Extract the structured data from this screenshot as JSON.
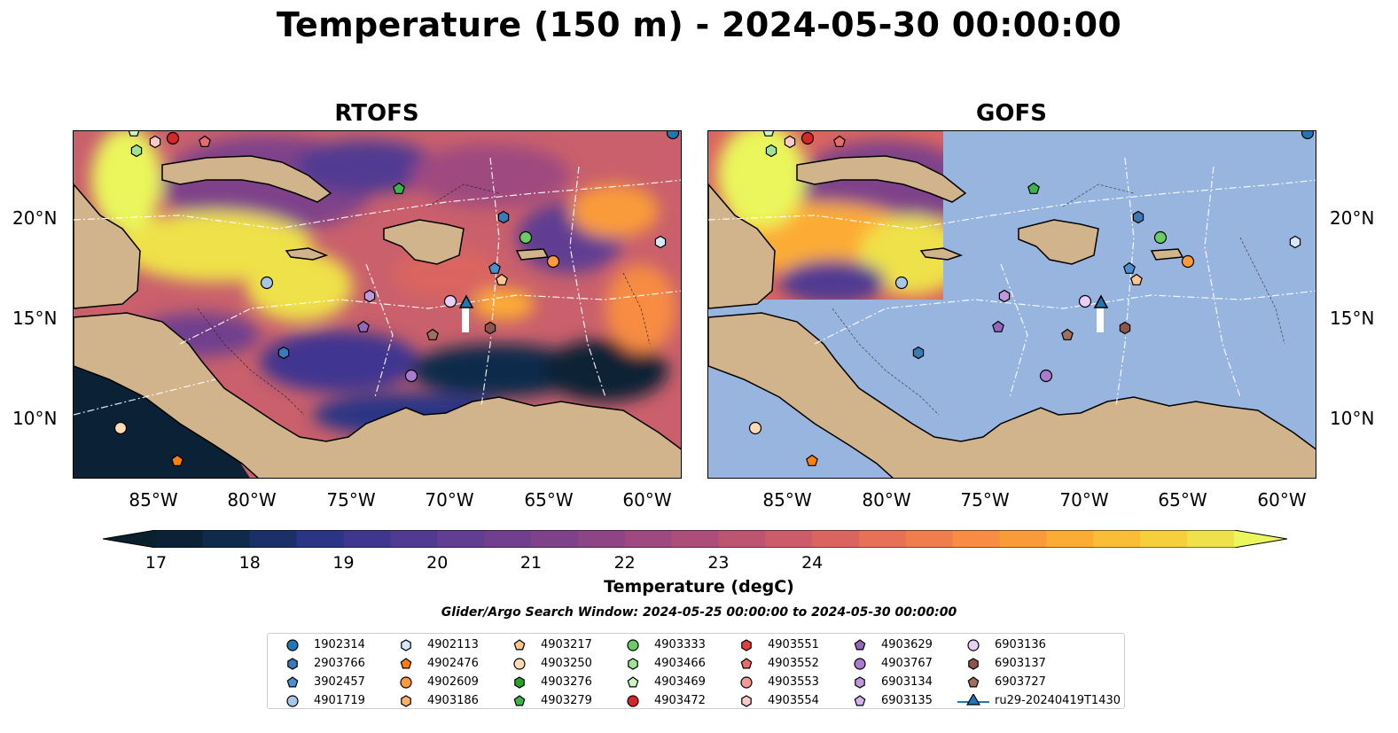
{
  "figure": {
    "title": "Temperature (150 m) - 2024-05-30 00:00:00",
    "search_window": "Glider/Argo Search Window: 2024-05-25 00:00:00 to 2024-05-30 00:00:00"
  },
  "panels": [
    {
      "title": "RTOFS"
    },
    {
      "title": "GOFS"
    }
  ],
  "axes": {
    "lat_ticks": [
      "10°N",
      "15°N",
      "20°N"
    ],
    "lon_ticks": [
      "85°W",
      "80°W",
      "75°W",
      "70°W",
      "65°W",
      "60°W"
    ]
  },
  "colorbar": {
    "label": "Temperature (degC)",
    "ticks": [
      "17",
      "18",
      "19",
      "20",
      "21",
      "22",
      "23",
      "24"
    ],
    "colors": [
      "#0b2236",
      "#102a4c",
      "#1b3068",
      "#2c3585",
      "#3f3690",
      "#513a92",
      "#613e92",
      "#703f8e",
      "#7f428a",
      "#8e4586",
      "#9e4980",
      "#ad4e7a",
      "#bd5572",
      "#cc5c69",
      "#da6560",
      "#e67157",
      "#f07e4d",
      "#f78c42",
      "#fa9b3a",
      "#fcac35",
      "#fbbd36",
      "#f6cf3c",
      "#efe14a"
    ],
    "over_color": "#eaf65b",
    "under_color": "#09202f"
  },
  "map_colors": {
    "land": "#d2b48c",
    "ocean": "#98b5e0"
  },
  "legend": {
    "entries": [
      {
        "label": "1902314",
        "marker": "circle",
        "color": "#1f77b4"
      },
      {
        "label": "2903766",
        "marker": "hexagon",
        "color": "#3a7ab8"
      },
      {
        "label": "3902457",
        "marker": "pentagon",
        "color": "#4a90d0"
      },
      {
        "label": "4901719",
        "marker": "circle",
        "color": "#a6c8e6"
      },
      {
        "label": "4902113",
        "marker": "hexagon",
        "color": "#d4e8f7"
      },
      {
        "label": "4902476",
        "marker": "pentagon",
        "color": "#ff7f0e"
      },
      {
        "label": "4902609",
        "marker": "circle",
        "color": "#ff9a3c"
      },
      {
        "label": "4903186",
        "marker": "hexagon",
        "color": "#ffb26b"
      },
      {
        "label": "4903217",
        "marker": "pentagon",
        "color": "#ffc58f"
      },
      {
        "label": "4903250",
        "marker": "circle",
        "color": "#ffdbb4"
      },
      {
        "label": "4903276",
        "marker": "hexagon",
        "color": "#2ca02c"
      },
      {
        "label": "4903279",
        "marker": "pentagon",
        "color": "#3cb44b"
      },
      {
        "label": "4903333",
        "marker": "circle",
        "color": "#6acc64"
      },
      {
        "label": "4903466",
        "marker": "hexagon",
        "color": "#9ee493"
      },
      {
        "label": "4903469",
        "marker": "pentagon",
        "color": "#c8f5c0"
      },
      {
        "label": "4903472",
        "marker": "circle",
        "color": "#d62728"
      },
      {
        "label": "4903551",
        "marker": "hexagon",
        "color": "#e0403f"
      },
      {
        "label": "4903552",
        "marker": "pentagon",
        "color": "#ea6b6b"
      },
      {
        "label": "4903553",
        "marker": "circle",
        "color": "#f39a99"
      },
      {
        "label": "4903554",
        "marker": "hexagon",
        "color": "#fbc9c8"
      },
      {
        "label": "4903629",
        "marker": "pentagon",
        "color": "#9467bd"
      },
      {
        "label": "4903767",
        "marker": "circle",
        "color": "#a97ccf"
      },
      {
        "label": "6903134",
        "marker": "hexagon",
        "color": "#bf98de"
      },
      {
        "label": "6903135",
        "marker": "pentagon",
        "color": "#d4b3ec"
      },
      {
        "label": "6903136",
        "marker": "circle",
        "color": "#e9cff8"
      },
      {
        "label": "6903137",
        "marker": "hexagon",
        "color": "#8c564b"
      },
      {
        "label": "6903727",
        "marker": "pentagon",
        "color": "#a0705f"
      },
      {
        "label": "ru29-20240419T1430",
        "marker": "triangle",
        "color": "#1f77b4"
      }
    ]
  }
}
